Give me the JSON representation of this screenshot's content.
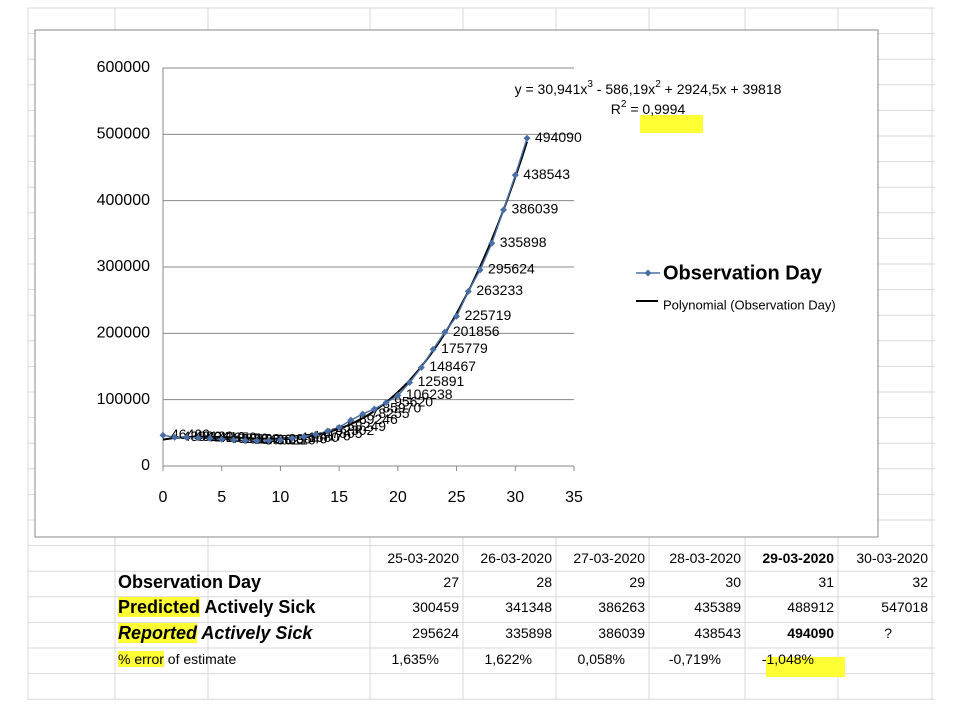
{
  "chart_data": {
    "type": "scatter",
    "series": [
      {
        "name": "Observation Day",
        "color": "#4a6fa5",
        "x": [
          0,
          1,
          2,
          3,
          4,
          5,
          6,
          7,
          8,
          9,
          10,
          11,
          12,
          13,
          14,
          15,
          16,
          17,
          18,
          19,
          20,
          21,
          22,
          23,
          24,
          25,
          26,
          27,
          28,
          29,
          30,
          31
        ],
        "values": [
          46400,
          43080,
          43120,
          42410,
          41650,
          40270,
          39180,
          38420,
          37860,
          38210,
          39540,
          41680,
          44170,
          47805,
          52302,
          58249,
          69246,
          78255,
          85970,
          95620,
          106238,
          125891,
          148467,
          175779,
          201856,
          225719,
          263233,
          295624,
          335898,
          386039,
          438543,
          494090
        ]
      }
    ],
    "trendline": {
      "name": "Polynomial (Observation Day)",
      "color": "#000000",
      "coefficients": [
        30.941,
        -586.19,
        2924.5,
        39818
      ],
      "equation": [
        "y = 30,941x",
        "3",
        " - 586,19x",
        "2",
        " + 2924,5x + 39818"
      ],
      "r2": [
        "R",
        "2",
        " = 0,9994"
      ]
    },
    "xlim": [
      0,
      35
    ],
    "xticks": [
      0,
      5,
      10,
      15,
      20,
      25,
      30,
      35
    ],
    "ylim": [
      0,
      600000
    ],
    "yticks": [
      0,
      100000,
      200000,
      300000,
      400000,
      500000,
      600000
    ],
    "grid": true,
    "legend": "right"
  },
  "table": {
    "header": [
      "25-03-2020",
      "26-03-2020",
      "27-03-2020",
      "28-03-2020",
      "29-03-2020",
      "30-03-2020"
    ],
    "rows": [
      {
        "label": [
          "Observation Day"
        ],
        "cells": [
          "27",
          "28",
          "29",
          "30",
          "31",
          "32"
        ]
      },
      {
        "label": [
          "Predicted",
          " Actively Sick"
        ],
        "cells": [
          "300459",
          "341348",
          "386263",
          "435389",
          "488912",
          "547018"
        ]
      },
      {
        "label": [
          "Reported",
          " Actively Sick"
        ],
        "cells": [
          "295624",
          "335898",
          "386039",
          "438543",
          "494090",
          "?"
        ]
      },
      {
        "label": [
          "% error",
          " of estimate"
        ],
        "cells": [
          "1,635%",
          "1,622%",
          "0,058%",
          "-0,719%",
          "-1,048%",
          ""
        ]
      }
    ]
  }
}
